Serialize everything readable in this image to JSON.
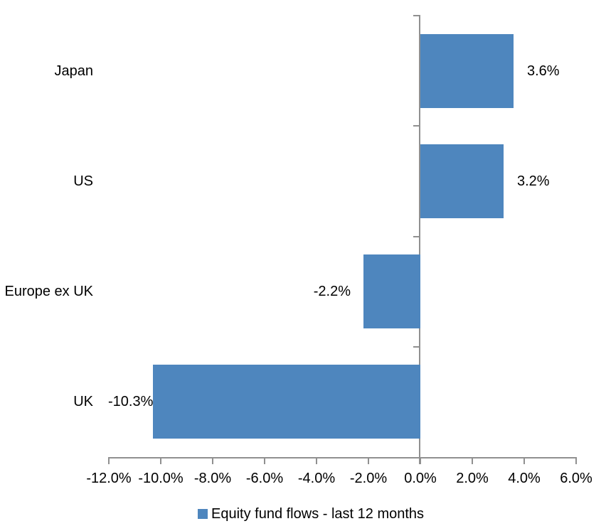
{
  "chart_data": {
    "type": "bar",
    "orientation": "horizontal",
    "title": "",
    "xlabel": "",
    "ylabel": "",
    "categories": [
      "Japan",
      "US",
      "Europe ex UK",
      "UK"
    ],
    "series": [
      {
        "name": "Equity fund flows - last 12 months",
        "values": [
          3.6,
          3.2,
          -2.2,
          -10.3
        ],
        "value_labels": [
          "3.6%",
          "3.2%",
          "-2.2%",
          "-10.3%"
        ]
      }
    ],
    "xlim": [
      -12,
      6
    ],
    "x_ticks": [
      -12,
      -10,
      -8,
      -6,
      -4,
      -2,
      0,
      2,
      4,
      6
    ],
    "x_tick_labels": [
      "-12.0%",
      "-10.0%",
      "-8.0%",
      "-6.0%",
      "-4.0%",
      "-2.0%",
      "0.0%",
      "2.0%",
      "4.0%",
      "6.0%"
    ],
    "grid": "off",
    "legend": {
      "position": "bottom",
      "label": "Equity fund flows - last 12 months"
    },
    "colors": {
      "bar": "#4E86BE",
      "axis": "#909090",
      "text": "#000000",
      "background": "#FFFFFF"
    }
  }
}
